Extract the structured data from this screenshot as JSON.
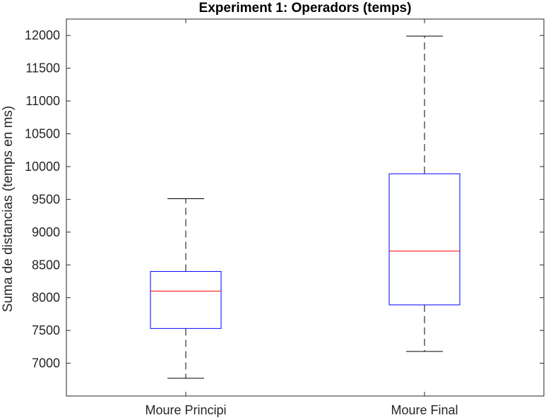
{
  "chart_data": {
    "type": "boxplot",
    "title": "Experiment 1: Operadors (temps)",
    "xlabel": "",
    "ylabel": "Suma de distancias (temps en ms)",
    "ylim": [
      6500,
      12250
    ],
    "yticks": [
      7000,
      7500,
      8000,
      8500,
      9000,
      9500,
      10000,
      10500,
      11000,
      11500,
      12000
    ],
    "categories": [
      "Moure Principi",
      "Moure Final"
    ],
    "series": [
      {
        "category": "Moure Principi",
        "whisker_low": 6770,
        "q1": 7530,
        "median": 8100,
        "q3": 8400,
        "whisker_high": 9510
      },
      {
        "category": "Moure Final",
        "whisker_low": 7180,
        "q1": 7890,
        "median": 8710,
        "q3": 9890,
        "whisker_high": 11990
      }
    ],
    "colors": {
      "box": "#0000ff",
      "median": "#ff0000",
      "whisker": "#000000",
      "axis": "#262626"
    },
    "grid": false
  }
}
